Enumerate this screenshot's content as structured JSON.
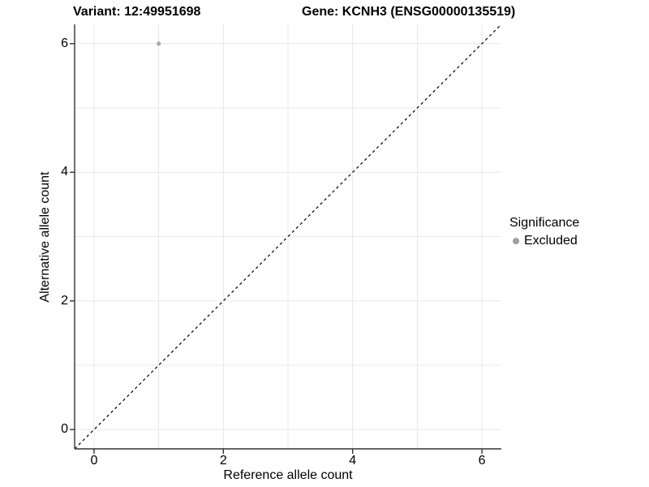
{
  "chart_data": {
    "type": "scatter",
    "titles": {
      "left": "Variant: 12:49951698",
      "right": "Gene: KCNH3 (ENSG00000135519)"
    },
    "xlabel": "Reference allele count",
    "ylabel": "Alternative allele count",
    "xlim": [
      -0.3,
      6.3
    ],
    "ylim": [
      -0.3,
      6.3
    ],
    "xticks": [
      0,
      2,
      4,
      6
    ],
    "yticks": [
      0,
      2,
      4,
      6
    ],
    "grid_positions": [
      0,
      1,
      2,
      3,
      4,
      5,
      6
    ],
    "grid": true,
    "points": [
      {
        "x": 1,
        "y": 6,
        "series": "Excluded"
      }
    ],
    "identity_line": {
      "slope": 1,
      "intercept": 0,
      "style": "dashed",
      "color": "#000000"
    },
    "legend": {
      "title": "Significance",
      "position": "right",
      "items": [
        {
          "label": "Excluded",
          "color": "#a0a0a0",
          "marker": "circle"
        }
      ]
    },
    "colors": {
      "grid": "#e8e8e8",
      "axis": "#333333",
      "point": "#a8a8a8",
      "text": "#000000",
      "background": "#ffffff"
    }
  }
}
